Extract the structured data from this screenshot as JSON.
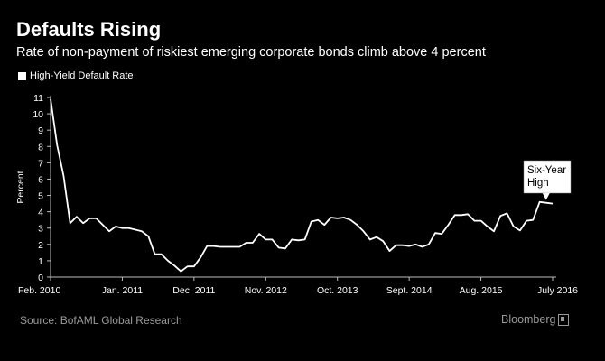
{
  "header": {
    "title": "Defaults Rising",
    "subtitle": "Rate of non-payment of riskiest emerging corporate bonds climb above 4 percent"
  },
  "legend": {
    "label": "High-Yield Default Rate"
  },
  "footer": {
    "source": "Source: BofAML Global Research",
    "logo_text": "Bloomberg"
  },
  "colors": {
    "background": "#000000",
    "line": "#ffffff",
    "axis": "#bbbbbb",
    "annotation_bg": "#ffffff",
    "footer_text": "#9a9a9a"
  },
  "chart_data": {
    "type": "line",
    "title": "Defaults Rising",
    "subtitle": "Rate of non-payment of riskiest emerging corporate bonds climb above 4 percent",
    "xlabel": "",
    "ylabel": "Percent",
    "ylim": [
      0,
      11
    ],
    "yticks": [
      0,
      1,
      2,
      3,
      4,
      5,
      6,
      7,
      8,
      9,
      10,
      11
    ],
    "xticks": [
      {
        "date": "2010-02",
        "label": "Feb. 2010"
      },
      {
        "date": "2011-01",
        "label": "Jan. 2011"
      },
      {
        "date": "2011-12",
        "label": "Dec. 2011"
      },
      {
        "date": "2012-11",
        "label": "Nov. 2012"
      },
      {
        "date": "2013-10",
        "label": "Oct. 2013"
      },
      {
        "date": "2014-09",
        "label": "Sept. 2014"
      },
      {
        "date": "2015-08",
        "label": "Aug. 2015"
      },
      {
        "date": "2016-07",
        "label": "July 2016"
      }
    ],
    "grid": false,
    "legend_position": "top-left",
    "annotation": {
      "text": [
        "Six-Year",
        "High"
      ],
      "date": "2016-06"
    },
    "series": [
      {
        "name": "High-Yield Default Rate",
        "x": [
          "2010-02",
          "2010-03",
          "2010-04",
          "2010-05",
          "2010-06",
          "2010-07",
          "2010-08",
          "2010-09",
          "2010-10",
          "2010-11",
          "2010-12",
          "2011-01",
          "2011-02",
          "2011-03",
          "2011-04",
          "2011-05",
          "2011-06",
          "2011-07",
          "2011-08",
          "2011-09",
          "2011-10",
          "2011-11",
          "2011-12",
          "2012-01",
          "2012-02",
          "2012-03",
          "2012-04",
          "2012-05",
          "2012-06",
          "2012-07",
          "2012-08",
          "2012-09",
          "2012-10",
          "2012-11",
          "2012-12",
          "2013-01",
          "2013-02",
          "2013-03",
          "2013-04",
          "2013-05",
          "2013-06",
          "2013-07",
          "2013-08",
          "2013-09",
          "2013-10",
          "2013-11",
          "2013-12",
          "2014-01",
          "2014-02",
          "2014-03",
          "2014-04",
          "2014-05",
          "2014-06",
          "2014-07",
          "2014-08",
          "2014-09",
          "2014-10",
          "2014-11",
          "2014-12",
          "2015-01",
          "2015-02",
          "2015-03",
          "2015-04",
          "2015-05",
          "2015-06",
          "2015-07",
          "2015-08",
          "2015-09",
          "2015-10",
          "2015-11",
          "2015-12",
          "2016-01",
          "2016-02",
          "2016-03",
          "2016-04",
          "2016-05",
          "2016-06",
          "2016-07"
        ],
        "values": [
          10.9,
          8.1,
          6.2,
          3.3,
          3.7,
          3.3,
          3.6,
          3.6,
          3.2,
          2.8,
          3.1,
          3.0,
          3.0,
          2.9,
          2.8,
          2.5,
          1.4,
          1.4,
          1.0,
          0.7,
          0.35,
          0.65,
          0.65,
          1.2,
          1.9,
          1.9,
          1.85,
          1.85,
          1.85,
          1.85,
          2.1,
          2.1,
          2.65,
          2.3,
          2.3,
          1.8,
          1.75,
          2.3,
          2.25,
          2.3,
          3.4,
          3.5,
          3.2,
          3.65,
          3.6,
          3.65,
          3.5,
          3.2,
          2.8,
          2.3,
          2.45,
          2.2,
          1.6,
          1.95,
          1.95,
          1.9,
          2.0,
          1.85,
          2.0,
          2.7,
          2.65,
          3.2,
          3.8,
          3.8,
          3.85,
          3.45,
          3.45,
          3.1,
          2.8,
          3.75,
          3.9,
          3.1,
          2.85,
          3.45,
          3.5,
          4.6,
          4.55,
          4.5
        ]
      }
    ]
  }
}
